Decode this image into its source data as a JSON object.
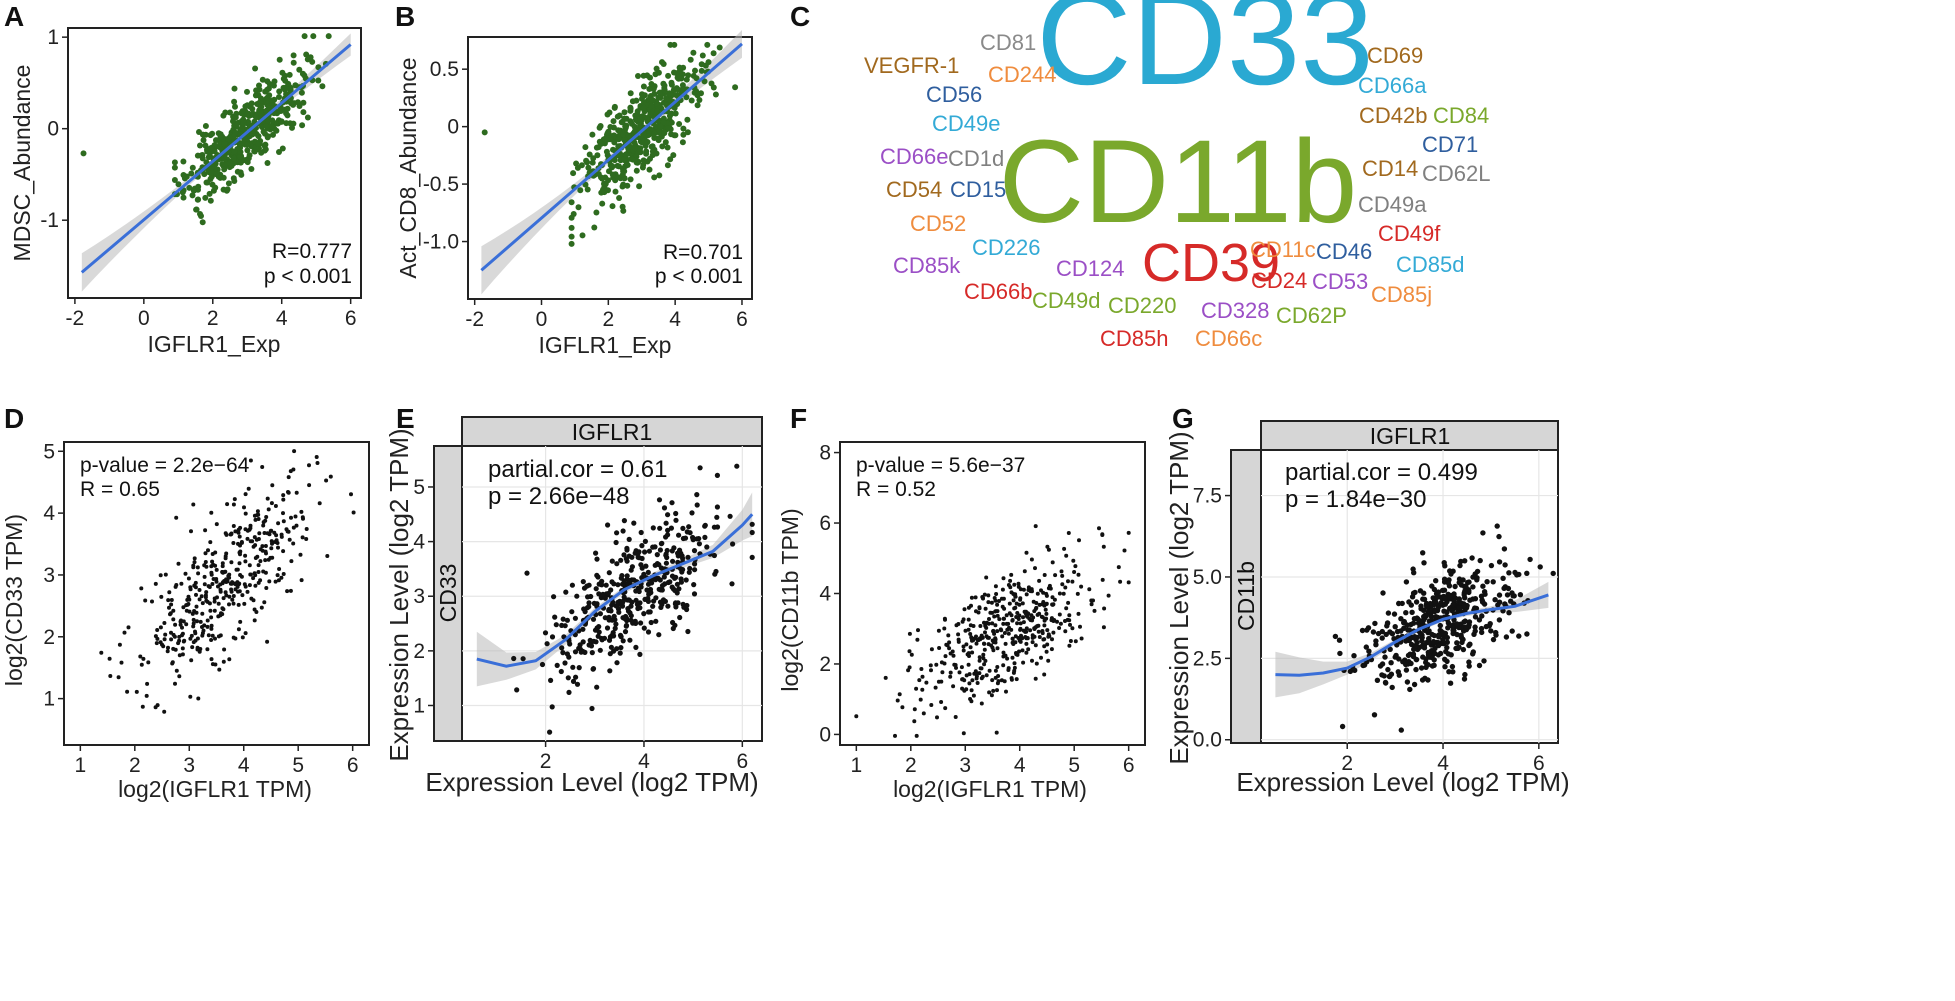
{
  "chart_data": [
    {
      "id": "A",
      "panel_label": "A",
      "type": "scatter",
      "xlabel": "IGFLR1_Exp",
      "ylabel": "MDSC_Abundance",
      "xlim": [
        -2.2,
        6.3
      ],
      "ylim": [
        -1.85,
        1.1
      ],
      "xticks": [
        -2,
        0,
        2,
        4,
        6
      ],
      "yticks": [
        -1,
        0,
        1
      ],
      "xtick_labels": [
        "-2",
        "0",
        "2",
        "4",
        "6"
      ],
      "ytick_labels": [
        "-1",
        "0",
        "1"
      ],
      "annotations": [
        "R=0.777",
        "p < 0.001"
      ],
      "fit": {
        "x": [
          -1.8,
          6.0
        ],
        "y": [
          -1.57,
          0.92
        ]
      },
      "point_color": "#2e6b1f",
      "fit_color": "#3a6fd8",
      "n_points": 480,
      "x_center": 2.9,
      "x_sd": 0.85,
      "x_range": [
        0.9,
        6.0
      ],
      "slope": 0.32,
      "intercept": -1.0,
      "resid_sd": 0.2
    },
    {
      "id": "B",
      "panel_label": "B",
      "type": "scatter",
      "xlabel": "IGFLR1_Exp",
      "ylabel": "Act_CD8_Abundance",
      "xlim": [
        -2.2,
        6.3
      ],
      "ylim": [
        -1.5,
        0.78
      ],
      "xticks": [
        -2,
        0,
        2,
        4,
        6
      ],
      "yticks": [
        -1.0,
        -0.5,
        0,
        0.5
      ],
      "xtick_labels": [
        "-2",
        "0",
        "2",
        "4",
        "6"
      ],
      "ytick_labels": [
        "-1.0",
        "-0.5",
        "0",
        "0.5"
      ],
      "annotations": [
        "R=0.701",
        "p < 0.001"
      ],
      "fit": {
        "x": [
          -1.8,
          6.0
        ],
        "y": [
          -1.25,
          0.72
        ]
      },
      "point_color": "#2e6b1f",
      "fit_color": "#3a6fd8",
      "n_points": 480,
      "x_center": 2.9,
      "x_sd": 0.85,
      "x_range": [
        0.9,
        6.0
      ],
      "slope": 0.253,
      "intercept": -0.8,
      "resid_sd": 0.2
    },
    {
      "id": "D",
      "panel_label": "D",
      "type": "scatter",
      "xlabel": "log2(IGFLR1 TPM)",
      "ylabel": "log2(CD33 TPM)",
      "xlim": [
        0.7,
        6.3
      ],
      "ylim": [
        0.25,
        5.15
      ],
      "xticks": [
        1,
        2,
        3,
        4,
        5,
        6
      ],
      "yticks": [
        1,
        2,
        3,
        4,
        5
      ],
      "xtick_labels": [
        "1",
        "2",
        "3",
        "4",
        "5",
        "6"
      ],
      "ytick_labels": [
        "1",
        "2",
        "3",
        "4",
        "5"
      ],
      "annotations": [
        "p-value = 2.2e−64",
        "R = 0.65"
      ],
      "point_color": "#111111",
      "n_points": 430,
      "x_center": 3.7,
      "x_sd": 0.8,
      "x_range": [
        0.9,
        6.1
      ],
      "slope": 0.75,
      "intercept": 0.15,
      "resid_sd": 0.55
    },
    {
      "id": "E",
      "panel_label": "E",
      "type": "scatter",
      "xlabel": "Expression Level (log2 TPM)",
      "ylabel": "Expression Level (log2 TPM)",
      "strip_top": "IGFLR1",
      "strip_side": "CD33",
      "xlim": [
        0.3,
        6.4
      ],
      "ylim": [
        0.35,
        5.75
      ],
      "xticks": [
        2,
        4,
        6
      ],
      "yticks": [
        1,
        2,
        3,
        4,
        5
      ],
      "xtick_labels": [
        "2",
        "4",
        "6"
      ],
      "ytick_labels": [
        "1",
        "2",
        "3",
        "4",
        "5"
      ],
      "annotations": [
        "partial.cor = 0.61",
        "p = 2.66e−48"
      ],
      "fit": {
        "x": [
          0.6,
          1.2,
          1.8,
          2.4,
          3.0,
          3.6,
          4.2,
          4.8,
          5.4,
          6.0,
          6.2
        ],
        "y": [
          1.85,
          1.72,
          1.82,
          2.2,
          2.72,
          3.12,
          3.38,
          3.6,
          3.82,
          4.3,
          4.5
        ]
      },
      "band_half_width": [
        0.5,
        0.25,
        0.16,
        0.09,
        0.07,
        0.06,
        0.06,
        0.08,
        0.12,
        0.28,
        0.4
      ],
      "point_color": "#111111",
      "fit_color": "#3a6fd8",
      "n_points": 420,
      "x_center": 3.8,
      "x_sd": 0.85,
      "x_range": [
        1.3,
        6.2
      ],
      "slope": 0.62,
      "intercept": 0.75,
      "resid_sd": 0.6
    },
    {
      "id": "F",
      "panel_label": "F",
      "type": "scatter",
      "xlabel": "log2(IGFLR1 TPM)",
      "ylabel": "log2(CD11b TPM)",
      "xlim": [
        0.7,
        6.3
      ],
      "ylim": [
        -0.3,
        8.3
      ],
      "xticks": [
        1,
        2,
        3,
        4,
        5,
        6
      ],
      "yticks": [
        0,
        2,
        4,
        6,
        8
      ],
      "xtick_labels": [
        "1",
        "2",
        "3",
        "4",
        "5",
        "6"
      ],
      "ytick_labels": [
        "0",
        "2",
        "4",
        "6",
        "8"
      ],
      "annotations": [
        "p-value = 5.6e−37",
        "R = 0.52"
      ],
      "point_color": "#111111",
      "n_points": 470,
      "x_center": 3.7,
      "x_sd": 0.8,
      "x_range": [
        1.0,
        6.0
      ],
      "slope": 0.75,
      "intercept": 0.1,
      "resid_sd": 0.8
    },
    {
      "id": "G",
      "panel_label": "G",
      "type": "scatter",
      "xlabel": "Expression Level (log2 TPM)",
      "ylabel": "Expression Level (log2 TPM)",
      "strip_top": "IGFLR1",
      "strip_side": "CD11b",
      "xlim": [
        0.2,
        6.4
      ],
      "ylim": [
        -0.1,
        8.9
      ],
      "xticks": [
        2,
        4,
        6
      ],
      "yticks": [
        0.0,
        2.5,
        5.0,
        7.5
      ],
      "xtick_labels": [
        "2",
        "4",
        "6"
      ],
      "ytick_labels": [
        "0.0",
        "2.5",
        "5.0",
        "7.5"
      ],
      "annotations": [
        "partial.cor = 0.499",
        "p = 1.84e−30"
      ],
      "fit": {
        "x": [
          0.5,
          1.0,
          1.5,
          2.0,
          2.5,
          3.0,
          3.5,
          4.0,
          4.5,
          5.0,
          5.5,
          6.2
        ],
        "y": [
          2.0,
          1.98,
          2.05,
          2.2,
          2.55,
          3.0,
          3.4,
          3.7,
          3.88,
          4.0,
          4.1,
          4.45
        ]
      },
      "band_half_width": [
        0.7,
        0.55,
        0.35,
        0.2,
        0.12,
        0.08,
        0.07,
        0.07,
        0.08,
        0.1,
        0.18,
        0.4
      ],
      "point_color": "#111111",
      "fit_color": "#3a6fd8",
      "n_points": 480,
      "x_center": 3.9,
      "x_sd": 0.8,
      "x_range": [
        1.3,
        6.3
      ],
      "slope": 0.7,
      "intercept": 0.85,
      "resid_sd": 0.75
    }
  ],
  "word_cloud": {
    "panel_label": "C",
    "words": [
      {
        "text": "CD33",
        "color": "#2aa9d2",
        "size": 132
      },
      {
        "text": "CD11b",
        "color": "#7aa82c",
        "size": 118
      },
      {
        "text": "CD39",
        "color": "#d62a28",
        "size": 54
      },
      {
        "text": "CD81",
        "color": "#8a8a8a",
        "size": 22
      },
      {
        "text": "VEGFR-1",
        "color": "#a1691e",
        "size": 22
      },
      {
        "text": "CD244",
        "color": "#ef8c3e",
        "size": 22
      },
      {
        "text": "CD56",
        "color": "#2f5e9e",
        "size": 22
      },
      {
        "text": "CD49e",
        "color": "#33aad6",
        "size": 22
      },
      {
        "text": "CD66e",
        "color": "#9b4fc6",
        "size": 22
      },
      {
        "text": "CD1d",
        "color": "#808080",
        "size": 22
      },
      {
        "text": "CD54",
        "color": "#a1691e",
        "size": 22
      },
      {
        "text": "CD15",
        "color": "#2f5e9e",
        "size": 22
      },
      {
        "text": "CD52",
        "color": "#ef8c3e",
        "size": 22
      },
      {
        "text": "CD226",
        "color": "#33aad6",
        "size": 22
      },
      {
        "text": "CD85k",
        "color": "#9b4fc6",
        "size": 22
      },
      {
        "text": "CD66b",
        "color": "#d62a28",
        "size": 22
      },
      {
        "text": "CD124",
        "color": "#9b4fc6",
        "size": 22
      },
      {
        "text": "CD49d",
        "color": "#7aa82c",
        "size": 22
      },
      {
        "text": "CD220",
        "color": "#7aa82c",
        "size": 22
      },
      {
        "text": "CD85h",
        "color": "#d62a28",
        "size": 22
      },
      {
        "text": "CD11c",
        "color": "#ef8c3e",
        "size": 22
      },
      {
        "text": "CD46",
        "color": "#2f5e9e",
        "size": 22
      },
      {
        "text": "CD24",
        "color": "#d62a28",
        "size": 22
      },
      {
        "text": "CD53",
        "color": "#9b4fc6",
        "size": 22
      },
      {
        "text": "CD328",
        "color": "#9b4fc6",
        "size": 22
      },
      {
        "text": "CD62P",
        "color": "#7aa82c",
        "size": 22
      },
      {
        "text": "CD66c",
        "color": "#ef8c3e",
        "size": 22
      },
      {
        "text": "CD69",
        "color": "#a1691e",
        "size": 22
      },
      {
        "text": "CD66a",
        "color": "#33aad6",
        "size": 22
      },
      {
        "text": "CD42b",
        "color": "#a1691e",
        "size": 22
      },
      {
        "text": "CD84",
        "color": "#7aa82c",
        "size": 22
      },
      {
        "text": "CD71",
        "color": "#2f5e9e",
        "size": 22
      },
      {
        "text": "CD14",
        "color": "#a1691e",
        "size": 22
      },
      {
        "text": "CD62L",
        "color": "#808080",
        "size": 22
      },
      {
        "text": "CD49a",
        "color": "#808080",
        "size": 22
      },
      {
        "text": "CD49f",
        "color": "#d62a28",
        "size": 22
      },
      {
        "text": "CD85d",
        "color": "#33aad6",
        "size": 22
      },
      {
        "text": "CD85j",
        "color": "#ef8c3e",
        "size": 22
      }
    ]
  }
}
